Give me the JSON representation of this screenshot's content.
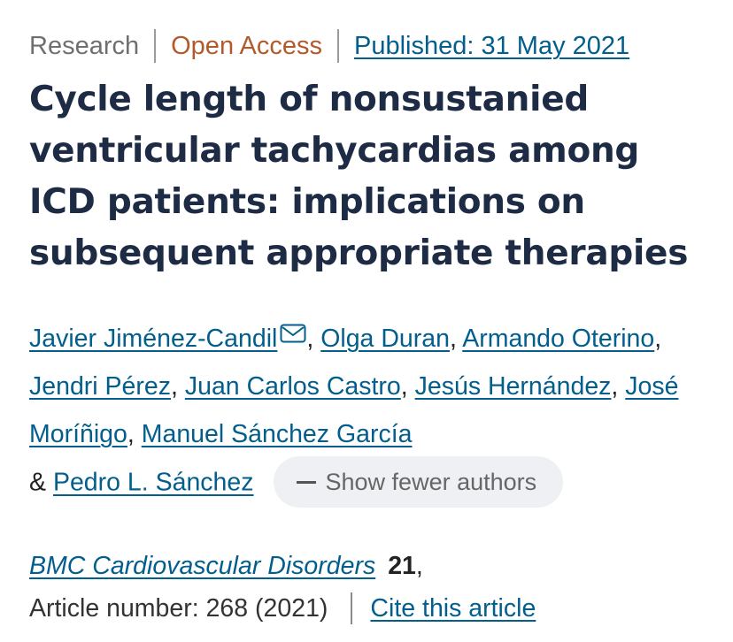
{
  "meta": {
    "type": "Research",
    "access": "Open Access",
    "published": "Published: 31 May 2021"
  },
  "title": "Cycle length of nonsustanied ventricular tachycardias among ICD patients: implications on subsequent appropriate therapies",
  "authors": [
    "Javier Jiménez-Candil",
    "Olga Duran",
    "Armando Oterino",
    "Jendri Pérez",
    "Juan Carlos Castro",
    "Jesús Hernández",
    "José Moríñigo",
    "Manuel Sánchez García",
    "Pedro L. Sánchez"
  ],
  "authors_ampersand": "&",
  "authors_separator": ",",
  "show_fewer_label": "Show fewer authors",
  "journal": {
    "name": "BMC Cardiovascular Disorders",
    "volume": "21",
    "volume_suffix": ",",
    "article_number": "Article number: 268 (2021)",
    "cite_label": "Cite this article"
  },
  "icons": {
    "email": "email-envelope-icon",
    "collapse": "minus-icon"
  },
  "colors": {
    "link": "#025e8d",
    "title": "#1e2b45",
    "open_access": "#b25a2b",
    "muted": "#6f6f6f",
    "button_bg": "#eef0f3"
  }
}
